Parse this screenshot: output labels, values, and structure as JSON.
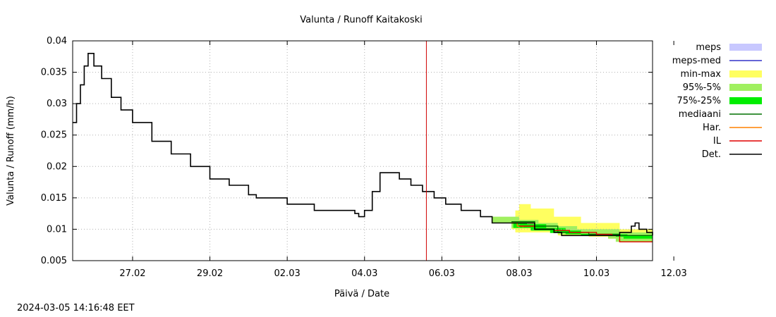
{
  "chart_data": {
    "type": "line",
    "title": "Valunta / Runoff  Kaitakoski",
    "xlabel": "Päivä / Date",
    "ylabel": "Valunta / Runoff (mm/h)",
    "ylim": [
      0.005,
      0.04
    ],
    "xlim_days": [
      -1.55,
      13.45
    ],
    "y_ticks": [
      {
        "value": 0.005,
        "label": "0.005"
      },
      {
        "value": 0.01,
        "label": "0.01"
      },
      {
        "value": 0.015,
        "label": "0.015"
      },
      {
        "value": 0.02,
        "label": "0.02"
      },
      {
        "value": 0.025,
        "label": "0.025"
      },
      {
        "value": 0.03,
        "label": "0.03"
      },
      {
        "value": 0.035,
        "label": "0.035"
      },
      {
        "value": 0.04,
        "label": "0.04"
      }
    ],
    "x_ticks": [
      {
        "day": 0,
        "label": "27.02"
      },
      {
        "day": 2,
        "label": "29.02"
      },
      {
        "day": 4,
        "label": "02.03"
      },
      {
        "day": 6,
        "label": "04.03"
      },
      {
        "day": 8,
        "label": "06.03"
      },
      {
        "day": 10,
        "label": "08.03"
      },
      {
        "day": 12,
        "label": "10.03"
      },
      {
        "day": 14,
        "label": "12.03"
      }
    ],
    "x_day_zero": "27.02",
    "grid": true,
    "current_time_day": 7.6,
    "legend_position": "right",
    "legend": [
      {
        "label": "meps",
        "kind": "box",
        "color": "#c8c8ff"
      },
      {
        "label": "meps-med",
        "kind": "line",
        "color": "#3232c8"
      },
      {
        "label": "min-max",
        "kind": "box",
        "color": "#ffff60"
      },
      {
        "label": "95%-5%",
        "kind": "box",
        "color": "#a0f060"
      },
      {
        "label": "75%-25%",
        "kind": "box",
        "color": "#00ee00"
      },
      {
        "label": "mediaani",
        "kind": "line",
        "color": "#007000"
      },
      {
        "label": "Har.",
        "kind": "line",
        "color": "#ff8000"
      },
      {
        "label": "IL",
        "kind": "line",
        "color": "#e00000"
      },
      {
        "label": "Det.",
        "kind": "line",
        "color": "#000000"
      }
    ],
    "series": [
      {
        "name": "Det.",
        "color": "#000000",
        "points": [
          [
            -1.55,
            0.027
          ],
          [
            -1.45,
            0.03
          ],
          [
            -1.35,
            0.033
          ],
          [
            -1.25,
            0.036
          ],
          [
            -1.15,
            0.038
          ],
          [
            -1.0,
            0.036
          ],
          [
            -0.8,
            0.034
          ],
          [
            -0.55,
            0.031
          ],
          [
            -0.3,
            0.029
          ],
          [
            0.0,
            0.027
          ],
          [
            0.5,
            0.024
          ],
          [
            1.0,
            0.022
          ],
          [
            1.5,
            0.02
          ],
          [
            2.0,
            0.018
          ],
          [
            2.5,
            0.017
          ],
          [
            3.0,
            0.0155
          ],
          [
            3.2,
            0.015
          ],
          [
            3.9,
            0.015
          ],
          [
            4.0,
            0.014
          ],
          [
            4.6,
            0.014
          ],
          [
            4.7,
            0.013
          ],
          [
            5.4,
            0.013
          ],
          [
            5.75,
            0.0125
          ],
          [
            5.85,
            0.012
          ],
          [
            6.0,
            0.013
          ],
          [
            6.2,
            0.016
          ],
          [
            6.4,
            0.019
          ],
          [
            6.7,
            0.019
          ],
          [
            6.9,
            0.018
          ],
          [
            7.2,
            0.017
          ],
          [
            7.5,
            0.016
          ],
          [
            7.8,
            0.015
          ],
          [
            8.1,
            0.014
          ],
          [
            8.5,
            0.013
          ],
          [
            9.0,
            0.012
          ],
          [
            9.3,
            0.011
          ],
          [
            10.1,
            0.011
          ],
          [
            10.4,
            0.01
          ],
          [
            10.9,
            0.0095
          ],
          [
            11.1,
            0.009
          ],
          [
            12.4,
            0.009
          ],
          [
            12.6,
            0.0095
          ],
          [
            12.9,
            0.0105
          ],
          [
            13.0,
            0.011
          ],
          [
            13.1,
            0.01
          ],
          [
            13.2,
            0.01
          ],
          [
            13.3,
            0.0095
          ],
          [
            13.45,
            0.009
          ]
        ]
      },
      {
        "name": "IL",
        "color": "#e00000",
        "points": [
          [
            10.0,
            0.0105
          ],
          [
            10.4,
            0.01
          ],
          [
            10.9,
            0.0098
          ],
          [
            11.3,
            0.0095
          ],
          [
            12.0,
            0.0092
          ],
          [
            12.4,
            0.009
          ],
          [
            12.6,
            0.008
          ],
          [
            13.45,
            0.008
          ]
        ]
      },
      {
        "name": "mediaani",
        "color": "#007000",
        "points": [
          [
            9.8,
            0.0112
          ],
          [
            10.4,
            0.0105
          ],
          [
            11.0,
            0.0095
          ],
          [
            11.8,
            0.0092
          ],
          [
            12.6,
            0.009
          ],
          [
            13.45,
            0.009
          ]
        ]
      },
      {
        "name": "Har.",
        "color": "#ff8000",
        "points": [
          [
            9.8,
            0.011
          ],
          [
            9.95,
            0.0105
          ],
          [
            10.1,
            0.0103
          ]
        ]
      }
    ],
    "bands": [
      {
        "name": "min-max",
        "color": "#ffff60",
        "upper": [
          [
            9.8,
            0.0115
          ],
          [
            9.9,
            0.013
          ],
          [
            10.0,
            0.014
          ],
          [
            10.2,
            0.014
          ],
          [
            10.3,
            0.0133
          ],
          [
            10.8,
            0.0133
          ],
          [
            10.9,
            0.012
          ],
          [
            11.5,
            0.012
          ],
          [
            11.6,
            0.011
          ],
          [
            12.5,
            0.011
          ],
          [
            12.6,
            0.01
          ],
          [
            13.45,
            0.01
          ]
        ],
        "lower": [
          [
            9.8,
            0.01
          ],
          [
            9.9,
            0.0095
          ],
          [
            10.5,
            0.0095
          ],
          [
            11.0,
            0.009
          ],
          [
            11.8,
            0.0088
          ],
          [
            12.3,
            0.0085
          ],
          [
            12.6,
            0.008
          ],
          [
            13.45,
            0.008
          ]
        ]
      },
      {
        "name": "95%-5%",
        "color": "#a0f060",
        "upper": [
          [
            9.3,
            0.012
          ],
          [
            9.4,
            0.012
          ],
          [
            9.8,
            0.012
          ],
          [
            10.0,
            0.0115
          ],
          [
            10.5,
            0.011
          ],
          [
            11.0,
            0.0105
          ],
          [
            11.5,
            0.01
          ],
          [
            12.3,
            0.01
          ],
          [
            12.6,
            0.0095
          ],
          [
            13.45,
            0.0095
          ]
        ],
        "lower": [
          [
            9.3,
            0.011
          ],
          [
            9.8,
            0.0102
          ],
          [
            10.4,
            0.0098
          ],
          [
            11.0,
            0.0092
          ],
          [
            11.7,
            0.009
          ],
          [
            12.3,
            0.0085
          ],
          [
            12.5,
            0.008
          ],
          [
            13.45,
            0.0082
          ]
        ]
      },
      {
        "name": "75%-25%",
        "color": "#00ee00",
        "upper": [
          [
            9.85,
            0.011
          ],
          [
            10.2,
            0.0108
          ],
          [
            10.7,
            0.0102
          ],
          [
            11.2,
            0.0098
          ],
          [
            11.6,
            0.0093
          ],
          [
            12.6,
            0.0092
          ],
          [
            12.8,
            0.009
          ],
          [
            13.45,
            0.009
          ]
        ],
        "lower": [
          [
            9.85,
            0.0102
          ],
          [
            10.3,
            0.0098
          ],
          [
            10.8,
            0.0094
          ],
          [
            11.2,
            0.0092
          ],
          [
            11.6,
            0.009
          ],
          [
            12.5,
            0.0088
          ],
          [
            12.7,
            0.0085
          ],
          [
            13.45,
            0.0086
          ]
        ]
      }
    ]
  },
  "footer": {
    "timestamp": "2024-03-05 14:16:48 EET"
  }
}
